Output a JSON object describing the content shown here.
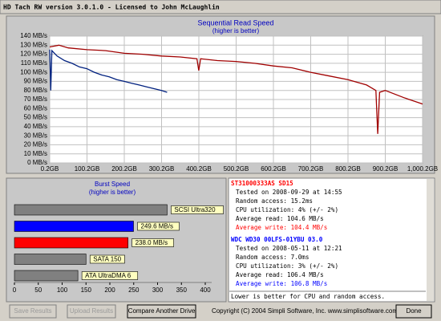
{
  "window": {
    "title": "HD Tach RW version 3.0.1.0 - Licensed to John McLaughlin"
  },
  "chart_data": [
    {
      "type": "line",
      "title": "Sequential Read Speed",
      "subtitle": "(higher is better)",
      "xlim": [
        0.2,
        1000.2
      ],
      "xticks": [
        {
          "value": 0.2,
          "label": "0.2GB"
        },
        {
          "value": 100.2,
          "label": "100.2GB"
        },
        {
          "value": 200.2,
          "label": "200.2GB"
        },
        {
          "value": 300.2,
          "label": "300.2GB"
        },
        {
          "value": 400.2,
          "label": "400.2GB"
        },
        {
          "value": 500.2,
          "label": "500.2GB"
        },
        {
          "value": 600.2,
          "label": "600.2GB"
        },
        {
          "value": 700.2,
          "label": "700.2GB"
        },
        {
          "value": 800.2,
          "label": "800.2GB"
        },
        {
          "value": 900.2,
          "label": "900.2GB"
        },
        {
          "value": 1000.2,
          "label": "1,000.2GB"
        }
      ],
      "ylim": [
        0,
        140
      ],
      "yticks": [
        {
          "value": 0,
          "label": "0 MB/s"
        },
        {
          "value": 10,
          "label": "10 MB/s"
        },
        {
          "value": 20,
          "label": "20 MB/s"
        },
        {
          "value": 30,
          "label": "30 MB/s"
        },
        {
          "value": 40,
          "label": "40 MB/s"
        },
        {
          "value": 50,
          "label": "50 MB/s"
        },
        {
          "value": 60,
          "label": "60 MB/s"
        },
        {
          "value": 70,
          "label": "70 MB/s"
        },
        {
          "value": 80,
          "label": "80 MB/s"
        },
        {
          "value": 90,
          "label": "90 MB/s"
        },
        {
          "value": 100,
          "label": "100 MB/s"
        },
        {
          "value": 110,
          "label": "110 MB/s"
        },
        {
          "value": 120,
          "label": "120 MB/s"
        },
        {
          "value": 130,
          "label": "130 MB/s"
        },
        {
          "value": 140,
          "label": "140 MB/s"
        }
      ],
      "grid": true,
      "series": [
        {
          "color": "#a00000",
          "x": [
            0.2,
            25,
            50,
            100,
            150,
            200,
            250,
            300,
            350,
            395,
            400,
            405,
            450,
            500,
            550,
            600,
            650,
            700,
            750,
            800,
            850,
            875,
            880,
            885,
            900,
            950,
            1000.2
          ],
          "values": [
            128,
            130,
            127,
            125,
            124,
            121,
            120,
            118,
            117,
            115,
            102,
            115,
            113,
            112,
            110,
            107,
            105,
            100,
            96,
            92,
            86,
            80,
            32,
            78,
            80,
            72,
            65
          ]
        },
        {
          "color": "#00207f",
          "x": [
            0.2,
            3,
            6,
            20,
            40,
            60,
            80,
            100,
            120,
            140,
            160,
            180,
            200,
            220,
            240,
            260,
            280,
            300,
            315
          ],
          "values": [
            125,
            80,
            124,
            118,
            113,
            110,
            106,
            104,
            100,
            97,
            95,
            92,
            90,
            88,
            86,
            84,
            82,
            80,
            78
          ]
        }
      ]
    },
    {
      "type": "hbar",
      "title": "Burst Speed",
      "subtitle": "(higher is better)",
      "categories": [
        "SCSI Ultra320",
        null,
        null,
        "SATA 150",
        "ATA UltraDMA 6"
      ],
      "values": [
        320,
        249.6,
        238.0,
        150,
        133
      ],
      "value_labels": [
        null,
        "249.6 MB/s",
        "238.0 MB/s",
        null,
        null
      ],
      "colors": [
        "#808080",
        "#0000ff",
        "#ff0000",
        "#808080",
        "#808080"
      ],
      "xlim": [
        0,
        400
      ],
      "xticks": [
        0,
        50,
        100,
        150,
        200,
        250,
        300,
        350,
        400
      ]
    }
  ],
  "info": {
    "drives": [
      {
        "name": "ST31000333AS SD15",
        "color": "#ff0000",
        "tested": "Tested on 2008-09-29 at 14:55",
        "access": "Random access: 15.2ms",
        "cpu": "CPU utilization: 4% (+/- 2%)",
        "read": "Average read: 104.6 MB/s",
        "write": "Average write: 104.4 MB/s"
      },
      {
        "name": "WDC WD30 00LFS-01YBU 03.0",
        "color": "#0000ff",
        "tested": "Tested on 2008-05-11 at 12:21",
        "access": "Random access: 7.0ms",
        "cpu": "CPU utilization: 3% (+/- 2%)",
        "read": "Average read: 106.4 MB/s",
        "write": "Average write: 106.8 MB/s"
      }
    ],
    "note": "Lower is better for CPU and random access."
  },
  "buttons": {
    "save": "Save Results",
    "upload": "Upload Results",
    "compare": "Compare Another Drive",
    "done": "Done"
  },
  "copyright": "Copyright (C) 2004 Simpli Software, Inc. www.simplisoftware.com"
}
